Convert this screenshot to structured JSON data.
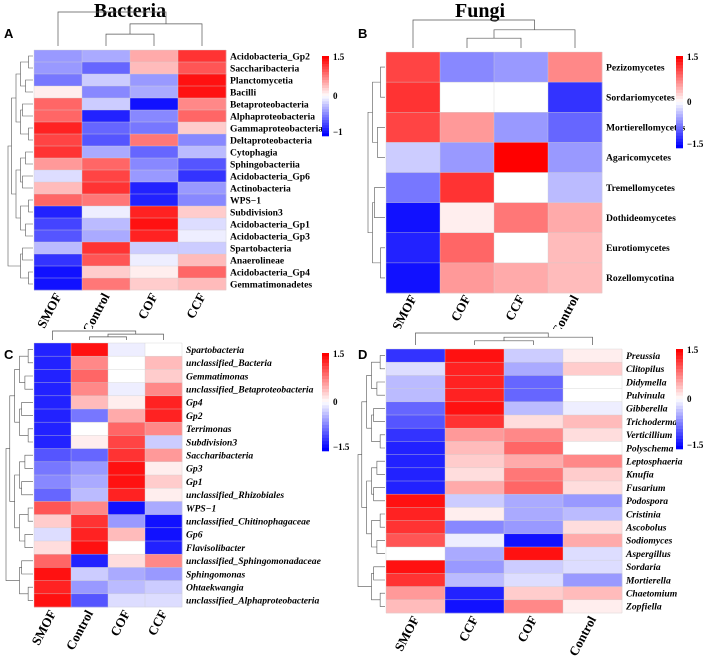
{
  "colors": {
    "low": "#0000ff",
    "mid": "#ffffff",
    "high": "#ff0000"
  },
  "panels": [
    {
      "letter": "A",
      "title": "Bacteria",
      "columns": [
        "SMOF",
        "Control",
        "COF",
        "CCF"
      ],
      "rows": [
        "Acidobacteria_Gp2",
        "Saccharibacteria",
        "Planctomycetia",
        "Bacilli",
        "Betaproteobacteria",
        "Alphaproteobacteria",
        "Gammaproteobacteria",
        "Deltaproteobacteria",
        "Cytophagia",
        "Sphingobacteriia",
        "Acidobacteria_Gp6",
        "Actinobacteria",
        "WPS−1",
        "Subdivision3",
        "Acidobacteria_Gp1",
        "Acidobacteria_Gp3",
        "Spartobacteria",
        "Anaerolineae",
        "Acidobacteria_Gp4",
        "Gemmatimonadetes"
      ],
      "italic": false,
      "scale": {
        "max_label": "1.5",
        "mid_label": "0",
        "min_label": "−1",
        "max": 1.5,
        "min": -1.5
      },
      "values": [
        [
          -0.6,
          -0.5,
          0.5,
          1.2
        ],
        [
          -0.6,
          -0.9,
          0.4,
          1.0
        ],
        [
          -0.8,
          -0.3,
          -0.6,
          1.4
        ],
        [
          0.1,
          -0.7,
          -0.5,
          1.4
        ],
        [
          0.9,
          -0.3,
          -1.4,
          0.7
        ],
        [
          0.9,
          -1.3,
          -0.7,
          0.9
        ],
        [
          1.3,
          -0.9,
          -0.8,
          0.3
        ],
        [
          1.1,
          -1.0,
          0.8,
          -0.7
        ],
        [
          1.2,
          -0.5,
          -0.9,
          -0.4
        ],
        [
          0.6,
          0.9,
          -0.7,
          -1.0
        ],
        [
          -0.2,
          1.1,
          -0.6,
          -1.2
        ],
        [
          0.4,
          1.2,
          -1.3,
          -0.6
        ],
        [
          0.9,
          0.8,
          -1.3,
          -0.7
        ],
        [
          -1.3,
          -0.1,
          1.3,
          0.3
        ],
        [
          -1.1,
          -0.4,
          1.4,
          -0.2
        ],
        [
          -1.0,
          -0.5,
          1.3,
          -0.1
        ],
        [
          -0.4,
          1.2,
          -0.3,
          -0.3
        ],
        [
          -1.2,
          1.0,
          -0.1,
          0.4
        ],
        [
          -1.4,
          0.3,
          0.1,
          0.9
        ],
        [
          -1.4,
          0.8,
          0.3,
          0.4
        ]
      ]
    },
    {
      "letter": "B",
      "title": "Fungi",
      "columns": [
        "SMOF",
        "COF",
        "CCF",
        "Control"
      ],
      "rows": [
        "Pezizomycetes",
        "Sordariomycetes",
        "Mortierellomycetes",
        "Agaricomycetes",
        "Tremellomycetes",
        "Dothideomycetes",
        "Eurotiomycetes",
        "Rozellomycotina"
      ],
      "italic": false,
      "scale": {
        "max_label": "1.5",
        "mid_label": "0",
        "min_label": "−1.5",
        "max": 1.5,
        "min": -1.5
      },
      "values": [
        [
          1.1,
          -0.7,
          -0.6,
          0.7
        ],
        [
          1.2,
          0.0,
          0.0,
          -1.2
        ],
        [
          1.1,
          0.6,
          -0.6,
          -0.9
        ],
        [
          -0.3,
          -0.6,
          1.5,
          -0.6
        ],
        [
          -0.8,
          1.2,
          0.0,
          -0.4
        ],
        [
          -1.4,
          0.1,
          0.8,
          0.5
        ],
        [
          -1.3,
          0.9,
          0.0,
          0.4
        ],
        [
          -1.4,
          0.6,
          0.5,
          0.4
        ]
      ]
    },
    {
      "letter": "C",
      "title": "",
      "columns": [
        "SMOF",
        "Control",
        "COF",
        "CCF"
      ],
      "rows": [
        "Spartobacteria",
        "unclassified_Bacteria",
        "Gemmatimonas",
        "unclassified_Betaproteobacteria",
        "Gp4",
        "Gp2",
        "Terrimonas",
        "Subdivision3",
        "Saccharibacteria",
        "Gp3",
        "Gp1",
        "unclassified_Rhizobiales",
        "WPS−1",
        "unclassified_Chitinophagaceae",
        "Gp6",
        "Flavisolibacter",
        "unclassified_Sphingomonadaceae",
        "Sphingomonas",
        "Ohtaekwangia",
        "unclassified_Alphaproteobacteria"
      ],
      "italic": true,
      "scale": {
        "max_label": "1.5",
        "mid_label": "0",
        "min_label": "−1.5",
        "max": 1.5,
        "min": -1.5
      },
      "values": [
        [
          -1.3,
          1.4,
          -0.1,
          0.0
        ],
        [
          -1.3,
          0.7,
          0.0,
          0.4
        ],
        [
          -1.3,
          0.9,
          0.0,
          0.3
        ],
        [
          -1.3,
          0.7,
          -0.1,
          0.7
        ],
        [
          -1.3,
          0.4,
          0.1,
          1.3
        ],
        [
          -1.3,
          -0.8,
          0.5,
          1.3
        ],
        [
          -1.3,
          0.0,
          0.9,
          0.7
        ],
        [
          -1.3,
          0.1,
          1.1,
          -0.3
        ],
        [
          -1.0,
          -0.9,
          1.2,
          0.6
        ],
        [
          -0.8,
          -0.6,
          1.4,
          0.1
        ],
        [
          -0.7,
          -0.5,
          1.4,
          0.3
        ],
        [
          -0.9,
          -0.4,
          1.3,
          0.1
        ],
        [
          1.0,
          0.7,
          -1.4,
          -0.5
        ],
        [
          0.3,
          1.2,
          -0.6,
          -1.4
        ],
        [
          -0.2,
          1.3,
          0.4,
          -1.4
        ],
        [
          0.2,
          1.4,
          0.0,
          -1.3
        ],
        [
          0.9,
          -1.3,
          0.2,
          0.7
        ],
        [
          1.4,
          -0.3,
          -0.5,
          -0.6
        ],
        [
          1.3,
          -0.6,
          -0.4,
          -0.3
        ],
        [
          1.4,
          -1.0,
          -0.2,
          -0.2
        ]
      ]
    },
    {
      "letter": "D",
      "title": "",
      "columns": [
        "SMOF",
        "CCF",
        "COF",
        "Control"
      ],
      "rows": [
        "Preussia",
        "Clitopilus",
        "Didymella",
        "Pulvinula",
        "Gibberella",
        "Trichoderma",
        "Verticillium",
        "Polyschema",
        "Leptosphaeria",
        "Knufia",
        "Fusarium",
        "Podospora",
        "Cristinia",
        "Ascobolus",
        "Sodiomyces",
        "Aspergillus",
        "Sordaria",
        "Mortierella",
        "Chaetomium",
        "Zopfiella"
      ],
      "italic": true,
      "scale": {
        "max_label": "1.5",
        "mid_label": "0",
        "min_label": "−1.5",
        "max": 1.5,
        "min": -1.5
      },
      "values": [
        [
          -1.2,
          1.4,
          -0.3,
          0.1
        ],
        [
          -0.2,
          1.3,
          -0.5,
          0.3
        ],
        [
          -0.4,
          1.3,
          -0.9,
          0.0
        ],
        [
          -0.4,
          1.3,
          -0.9,
          0.0
        ],
        [
          -0.9,
          1.4,
          -0.4,
          -0.1
        ],
        [
          -1.0,
          1.2,
          0.2,
          0.4
        ],
        [
          -1.2,
          0.6,
          0.7,
          0.2
        ],
        [
          -1.3,
          0.4,
          0.9,
          0.0
        ],
        [
          -1.3,
          0.3,
          0.5,
          0.7
        ],
        [
          -1.3,
          0.2,
          0.8,
          0.3
        ],
        [
          -1.3,
          0.5,
          0.9,
          0.2
        ],
        [
          1.4,
          -0.3,
          -0.5,
          -0.6
        ],
        [
          1.3,
          0.1,
          -0.5,
          -0.4
        ],
        [
          1.2,
          -0.7,
          -0.6,
          0.2
        ],
        [
          1.0,
          -0.1,
          -1.4,
          0.5
        ],
        [
          0.0,
          -0.5,
          1.4,
          -0.2
        ],
        [
          1.4,
          -0.6,
          -0.3,
          -0.2
        ],
        [
          1.2,
          -0.4,
          -0.2,
          -0.6
        ],
        [
          0.6,
          -1.3,
          0.3,
          0.4
        ],
        [
          0.4,
          -1.4,
          0.7,
          0.1
        ]
      ]
    }
  ]
}
